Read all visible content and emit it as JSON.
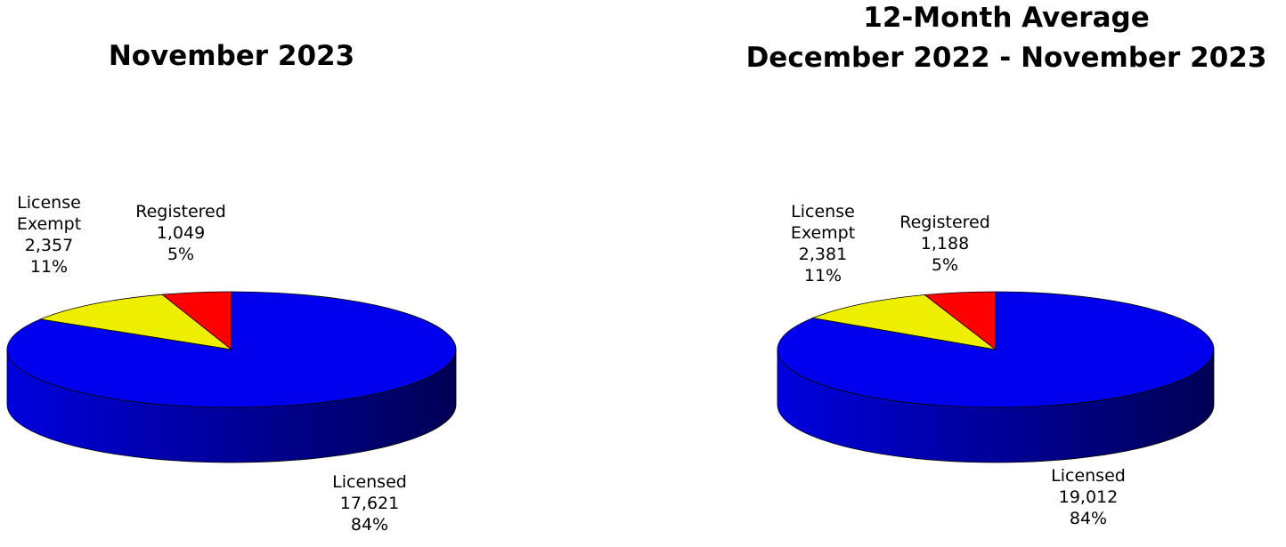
{
  "chart_data": [
    {
      "type": "pie3d",
      "title": "November 2023",
      "categories": [
        "Licensed",
        "License Exempt",
        "Registered"
      ],
      "values": [
        17621,
        2357,
        1049
      ],
      "value_labels": [
        "17,621",
        "2,357",
        "1,049"
      ],
      "percents": [
        84,
        11,
        5
      ],
      "percent_labels": [
        "84%",
        "11%",
        "5%"
      ],
      "colors": [
        "#0000ee",
        "#eeee00",
        "#ff0000"
      ]
    },
    {
      "type": "pie3d",
      "title": "12-Month Average",
      "subtitle": "December 2022 - November 2023",
      "categories": [
        "Licensed",
        "License Exempt",
        "Registered"
      ],
      "values": [
        19012,
        2381,
        1188
      ],
      "value_labels": [
        "19,012",
        "2,381",
        "1,188"
      ],
      "percents": [
        84,
        11,
        5
      ],
      "percent_labels": [
        "84%",
        "11%",
        "5%"
      ],
      "colors": [
        "#0000ee",
        "#eeee00",
        "#ff0000"
      ]
    }
  ]
}
